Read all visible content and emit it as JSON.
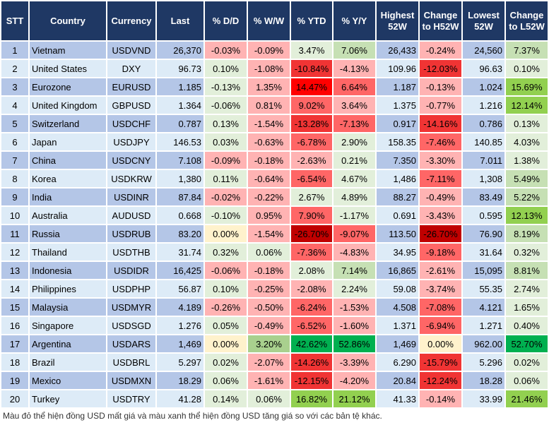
{
  "headers": [
    "STT",
    "Country",
    "Currency",
    "Last",
    "% D/D",
    "% W/W",
    "% YTD",
    "% Y/Y",
    "Highest 52W",
    "Change to H52W",
    "Lowest 52W",
    "Change to L52W"
  ],
  "palette": {
    "row_odd": "#b4c6e7",
    "row_even": "#ddebf7",
    "header": "#1f3864",
    "r1": "#ffb3b3",
    "r2": "#ff6666",
    "r3": "#f03434",
    "r4": "#ff0000",
    "r5": "#c00000",
    "g0": "#e2efda",
    "g1": "#c6e0b4",
    "g2": "#a9d08e",
    "g3": "#92d050",
    "g4": "#00b050",
    "y": "#fff2cc"
  },
  "rows": [
    {
      "stt": "1",
      "country": "Vietnam",
      "currency": "USDVND",
      "last": "26,370",
      "dd": "-0.03%",
      "ww": "-0.09%",
      "ytd": "3.47%",
      "yy": "7.06%",
      "h52": "26,433",
      "ch52": "-0.24%",
      "l52": "24,560",
      "cl52": "7.37%",
      "colors": [
        "r1",
        "r1",
        "g0",
        "g1",
        "r1",
        "g1"
      ]
    },
    {
      "stt": "2",
      "country": "United States",
      "currency": "DXY",
      "last": "96.73",
      "dd": "0.10%",
      "ww": "-1.08%",
      "ytd": "-10.84%",
      "yy": "-4.13%",
      "h52": "109.96",
      "ch52": "-12.03%",
      "l52": "96.63",
      "cl52": "0.10%",
      "colors": [
        "g0",
        "r1",
        "r3",
        "r1",
        "r3",
        "g0"
      ]
    },
    {
      "stt": "3",
      "country": "Eurozone",
      "currency": "EURUSD",
      "last": "1.185",
      "dd": "-0.13%",
      "ww": "1.35%",
      "ytd": "14.47%",
      "yy": "6.64%",
      "h52": "1.187",
      "ch52": "-0.13%",
      "l52": "1.024",
      "cl52": "15.69%",
      "colors": [
        "g0",
        "r1",
        "r4",
        "r2",
        "r1",
        "g3"
      ]
    },
    {
      "stt": "4",
      "country": "United Kingdom",
      "currency": "GBPUSD",
      "last": "1.364",
      "dd": "-0.06%",
      "ww": "0.81%",
      "ytd": "9.02%",
      "yy": "3.64%",
      "h52": "1.375",
      "ch52": "-0.77%",
      "l52": "1.216",
      "cl52": "12.14%",
      "colors": [
        "g0",
        "r1",
        "r2",
        "r1",
        "r1",
        "g3"
      ]
    },
    {
      "stt": "5",
      "country": "Switzerland",
      "currency": "USDCHF",
      "last": "0.787",
      "dd": "0.13%",
      "ww": "-1.54%",
      "ytd": "-13.28%",
      "yy": "-7.13%",
      "h52": "0.917",
      "ch52": "-14.16%",
      "l52": "0.786",
      "cl52": "0.13%",
      "colors": [
        "g0",
        "r1",
        "r3",
        "r2",
        "r3",
        "g0"
      ]
    },
    {
      "stt": "6",
      "country": "Japan",
      "currency": "USDJPY",
      "last": "146.53",
      "dd": "0.03%",
      "ww": "-0.63%",
      "ytd": "-6.78%",
      "yy": "2.90%",
      "h52": "158.35",
      "ch52": "-7.46%",
      "l52": "140.85",
      "cl52": "4.03%",
      "colors": [
        "g0",
        "r1",
        "r2",
        "g0",
        "r2",
        "g0"
      ]
    },
    {
      "stt": "7",
      "country": "China",
      "currency": "USDCNY",
      "last": "7.108",
      "dd": "-0.09%",
      "ww": "-0.18%",
      "ytd": "-2.63%",
      "yy": "0.21%",
      "h52": "7.350",
      "ch52": "-3.30%",
      "l52": "7.011",
      "cl52": "1.38%",
      "colors": [
        "r1",
        "r1",
        "r1",
        "g0",
        "r1",
        "g0"
      ]
    },
    {
      "stt": "8",
      "country": "Korea",
      "currency": "USDKRW",
      "last": "1,380",
      "dd": "0.11%",
      "ww": "-0.64%",
      "ytd": "-6.54%",
      "yy": "4.67%",
      "h52": "1,486",
      "ch52": "-7.11%",
      "l52": "1,308",
      "cl52": "5.49%",
      "colors": [
        "g0",
        "r1",
        "r2",
        "g0",
        "r2",
        "g1"
      ]
    },
    {
      "stt": "9",
      "country": "India",
      "currency": "USDINR",
      "last": "87.84",
      "dd": "-0.02%",
      "ww": "-0.22%",
      "ytd": "2.67%",
      "yy": "4.89%",
      "h52": "88.27",
      "ch52": "-0.49%",
      "l52": "83.49",
      "cl52": "5.22%",
      "colors": [
        "r1",
        "r1",
        "g0",
        "g0",
        "r1",
        "g1"
      ]
    },
    {
      "stt": "10",
      "country": "Australia",
      "currency": "AUDUSD",
      "last": "0.668",
      "dd": "-0.10%",
      "ww": "0.95%",
      "ytd": "7.90%",
      "yy": "-1.17%",
      "h52": "0.691",
      "ch52": "-3.43%",
      "l52": "0.595",
      "cl52": "12.13%",
      "colors": [
        "g0",
        "r1",
        "r2",
        "g0",
        "r1",
        "g3"
      ]
    },
    {
      "stt": "11",
      "country": "Russia",
      "currency": "USDRUB",
      "last": "83.20",
      "dd": "0.00%",
      "ww": "-1.54%",
      "ytd": "-26.70%",
      "yy": "-9.07%",
      "h52": "113.50",
      "ch52": "-26.70%",
      "l52": "76.90",
      "cl52": "8.19%",
      "colors": [
        "y",
        "r1",
        "r5",
        "r2",
        "r5",
        "g1"
      ]
    },
    {
      "stt": "12",
      "country": "Thailand",
      "currency": "USDTHB",
      "last": "31.74",
      "dd": "0.32%",
      "ww": "0.06%",
      "ytd": "-7.36%",
      "yy": "-4.83%",
      "h52": "34.95",
      "ch52": "-9.18%",
      "l52": "31.64",
      "cl52": "0.32%",
      "colors": [
        "g0",
        "g0",
        "r2",
        "r1",
        "r2",
        "g0"
      ]
    },
    {
      "stt": "13",
      "country": "Indonesia",
      "currency": "USDIDR",
      "last": "16,425",
      "dd": "-0.06%",
      "ww": "-0.18%",
      "ytd": "2.08%",
      "yy": "7.14%",
      "h52": "16,865",
      "ch52": "-2.61%",
      "l52": "15,095",
      "cl52": "8.81%",
      "colors": [
        "r1",
        "r1",
        "g0",
        "g1",
        "r1",
        "g1"
      ]
    },
    {
      "stt": "14",
      "country": "Philippines",
      "currency": "USDPHP",
      "last": "56.87",
      "dd": "0.10%",
      "ww": "-0.25%",
      "ytd": "-2.08%",
      "yy": "2.24%",
      "h52": "59.08",
      "ch52": "-3.74%",
      "l52": "55.35",
      "cl52": "2.74%",
      "colors": [
        "g0",
        "r1",
        "r1",
        "g0",
        "r1",
        "g0"
      ]
    },
    {
      "stt": "15",
      "country": "Malaysia",
      "currency": "USDMYR",
      "last": "4.189",
      "dd": "-0.26%",
      "ww": "-0.50%",
      "ytd": "-6.24%",
      "yy": "-1.53%",
      "h52": "4.508",
      "ch52": "-7.08%",
      "l52": "4.121",
      "cl52": "1.65%",
      "colors": [
        "r1",
        "r1",
        "r2",
        "r1",
        "r2",
        "g0"
      ]
    },
    {
      "stt": "16",
      "country": "Singapore",
      "currency": "USDSGD",
      "last": "1.276",
      "dd": "0.05%",
      "ww": "-0.49%",
      "ytd": "-6.52%",
      "yy": "-1.60%",
      "h52": "1.371",
      "ch52": "-6.94%",
      "l52": "1.271",
      "cl52": "0.40%",
      "colors": [
        "g0",
        "r1",
        "r2",
        "r1",
        "r2",
        "g0"
      ]
    },
    {
      "stt": "17",
      "country": "Argentina",
      "currency": "USDARS",
      "last": "1,469",
      "dd": "0.00%",
      "ww": "3.20%",
      "ytd": "42.62%",
      "yy": "52.86%",
      "h52": "1,469",
      "ch52": "0.00%",
      "l52": "962.00",
      "cl52": "52.70%",
      "colors": [
        "y",
        "g2",
        "g4",
        "g4",
        "y",
        "g4"
      ]
    },
    {
      "stt": "18",
      "country": "Brazil",
      "currency": "USDBRL",
      "last": "5.297",
      "dd": "0.02%",
      "ww": "-2.07%",
      "ytd": "-14.26%",
      "yy": "-3.39%",
      "h52": "6.290",
      "ch52": "-15.79%",
      "l52": "5.296",
      "cl52": "0.02%",
      "colors": [
        "g0",
        "r1",
        "r3",
        "r1",
        "r3",
        "g0"
      ]
    },
    {
      "stt": "19",
      "country": "Mexico",
      "currency": "USDMXN",
      "last": "18.29",
      "dd": "0.06%",
      "ww": "-1.61%",
      "ytd": "-12.15%",
      "yy": "-4.20%",
      "h52": "20.84",
      "ch52": "-12.24%",
      "l52": "18.28",
      "cl52": "0.06%",
      "colors": [
        "g0",
        "r1",
        "r3",
        "r1",
        "r3",
        "g0"
      ]
    },
    {
      "stt": "20",
      "country": "Turkey",
      "currency": "USDTRY",
      "last": "41.28",
      "dd": "0.14%",
      "ww": "0.06%",
      "ytd": "16.82%",
      "yy": "21.12%",
      "h52": "41.33",
      "ch52": "-0.14%",
      "l52": "33.99",
      "cl52": "21.46%",
      "colors": [
        "g0",
        "g0",
        "g3",
        "g3",
        "r1",
        "g3"
      ]
    }
  ],
  "caption": "Màu đỏ thể hiện đồng USD mất giá và màu xanh thể hiện đồng USD tăng giá so với các bản tệ khác."
}
